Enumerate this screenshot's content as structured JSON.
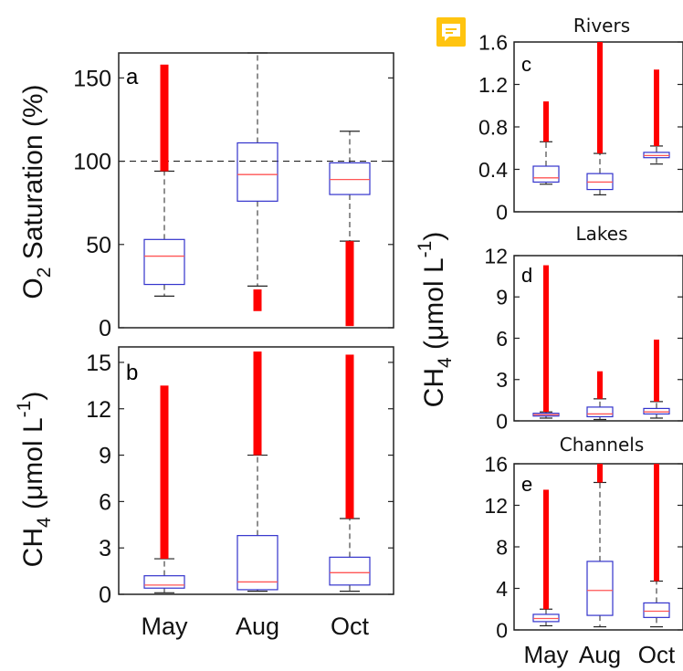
{
  "chart_data": [
    {
      "panel": "a",
      "type": "box",
      "title": "",
      "ylabel_main": "O",
      "ylabel_sub": "2",
      "ylabel_rest": " Saturation (%)",
      "categories": [
        "May",
        "Aug",
        "Oct"
      ],
      "ylim": [
        0,
        165
      ],
      "yticks": [
        "0",
        "50",
        "100",
        "150"
      ],
      "ytick_values": [
        0,
        50,
        100,
        150
      ],
      "reference_line": 100,
      "boxes": [
        {
          "whisker_low": 19,
          "q1": 26,
          "median": 43,
          "q3": 53,
          "whisker_high": 94,
          "outliers": [
            94,
            158
          ]
        },
        {
          "whisker_low": 25,
          "q1": 76,
          "median": 92,
          "q3": 111,
          "whisker_high": 165,
          "outliers": [
            10,
            23
          ]
        },
        {
          "whisker_low": 52,
          "q1": 80,
          "median": 89,
          "q3": 99,
          "whisker_high": 118,
          "outliers": [
            1,
            52
          ]
        }
      ]
    },
    {
      "panel": "b",
      "type": "box",
      "title": "",
      "ylabel_main": "CH",
      "ylabel_sub": "4",
      "ylabel_rest": " (μmol L",
      "ylabel_sup": "-1",
      "ylabel_end": ")",
      "categories": [
        "May",
        "Aug",
        "Oct"
      ],
      "ylim": [
        0,
        16
      ],
      "yticks": [
        "0",
        "3",
        "6",
        "9",
        "12",
        "15"
      ],
      "ytick_values": [
        0,
        3,
        6,
        9,
        12,
        15
      ],
      "boxes": [
        {
          "whisker_low": 0.1,
          "q1": 0.4,
          "median": 0.6,
          "q3": 1.2,
          "whisker_high": 2.3,
          "outliers": [
            2.3,
            13.5
          ]
        },
        {
          "whisker_low": 0.2,
          "q1": 0.3,
          "median": 0.8,
          "q3": 3.8,
          "whisker_high": 9.0,
          "outliers": [
            9.0,
            15.7
          ]
        },
        {
          "whisker_low": 0.2,
          "q1": 0.6,
          "median": 1.4,
          "q3": 2.4,
          "whisker_high": 4.9,
          "outliers": [
            4.9,
            15.5
          ]
        }
      ]
    },
    {
      "panel": "c",
      "type": "box",
      "title": "Rivers",
      "categories": [
        "May",
        "Aug",
        "Oct"
      ],
      "ylim": [
        0,
        1.6
      ],
      "yticks": [
        "0",
        "0.4",
        "0.8",
        "1.2",
        "1.6"
      ],
      "ytick_values": [
        0,
        0.4,
        0.8,
        1.2,
        1.6
      ],
      "boxes": [
        {
          "whisker_low": 0.26,
          "q1": 0.28,
          "median": 0.32,
          "q3": 0.43,
          "whisker_high": 0.66,
          "outliers": [
            0.66,
            1.04
          ]
        },
        {
          "whisker_low": 0.16,
          "q1": 0.21,
          "median": 0.28,
          "q3": 0.36,
          "whisker_high": 0.55,
          "outliers": [
            0.55,
            1.6
          ]
        },
        {
          "whisker_low": 0.45,
          "q1": 0.51,
          "median": 0.53,
          "q3": 0.56,
          "whisker_high": 0.62,
          "outliers": [
            0.62,
            1.34
          ]
        }
      ]
    },
    {
      "panel": "d",
      "type": "box",
      "title": "Lakes",
      "categories": [
        "May",
        "Aug",
        "Oct"
      ],
      "ylim": [
        0,
        12
      ],
      "yticks": [
        "0",
        "3",
        "6",
        "9",
        "12"
      ],
      "ytick_values": [
        0,
        3,
        6,
        9,
        12
      ],
      "boxes": [
        {
          "whisker_low": 0.2,
          "q1": 0.35,
          "median": 0.45,
          "q3": 0.55,
          "whisker_high": 0.65,
          "outliers": [
            0.65,
            11.3
          ]
        },
        {
          "whisker_low": 0.1,
          "q1": 0.3,
          "median": 0.5,
          "q3": 1.0,
          "whisker_high": 1.6,
          "outliers": [
            1.6,
            3.6
          ]
        },
        {
          "whisker_low": 0.2,
          "q1": 0.5,
          "median": 0.65,
          "q3": 0.9,
          "whisker_high": 1.4,
          "outliers": [
            1.4,
            5.9
          ]
        }
      ]
    },
    {
      "panel": "e",
      "type": "box",
      "title": "Channels",
      "categories": [
        "May",
        "Aug",
        "Oct"
      ],
      "ylim": [
        0,
        16
      ],
      "yticks": [
        "0",
        "4",
        "8",
        "12",
        "16"
      ],
      "ytick_values": [
        0,
        4,
        8,
        12,
        16
      ],
      "boxes": [
        {
          "whisker_low": 0.4,
          "q1": 0.8,
          "median": 1.1,
          "q3": 1.5,
          "whisker_high": 2.0,
          "outliers": [
            2.0,
            13.5
          ]
        },
        {
          "whisker_low": 0.3,
          "q1": 1.4,
          "median": 3.8,
          "q3": 6.6,
          "whisker_high": 14.2,
          "outliers": [
            14.2,
            16
          ]
        },
        {
          "whisker_low": 0.3,
          "q1": 1.2,
          "median": 1.8,
          "q3": 2.6,
          "whisker_high": 4.7,
          "outliers": [
            4.7,
            16
          ]
        }
      ]
    }
  ],
  "shared_ylabel": {
    "main": "CH",
    "sub": "4",
    "rest": " (μmol L",
    "sup": "-1",
    "end": ")"
  },
  "colors": {
    "box": "#3333cc",
    "median": "#ff5555",
    "outlier": "#ff0000",
    "whisker": "#222222",
    "axis": "#222222",
    "comment_bg": "#ffc410"
  },
  "icons": {
    "comment": "comment-icon"
  }
}
